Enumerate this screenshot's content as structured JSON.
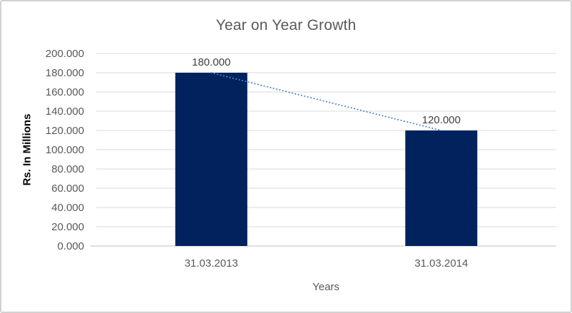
{
  "chart_data": {
    "type": "bar",
    "title": "Year on Year Growth",
    "xlabel": "Years",
    "ylabel": "Rs. In Millions",
    "categories": [
      "31.03.2013",
      "31.03.2014"
    ],
    "values": [
      180,
      120
    ],
    "data_labels": [
      "180.000",
      "120.000"
    ],
    "ylim": [
      0,
      200
    ],
    "ytick_step": 20,
    "ytick_labels": [
      "0.000",
      "20.000",
      "40.000",
      "60.000",
      "80.000",
      "100.000",
      "120.000",
      "140.000",
      "160.000",
      "180.000",
      "200.000"
    ],
    "grid": true,
    "legend": "none",
    "trendline": {
      "type": "linear-dotted",
      "connects": [
        180,
        120
      ],
      "color": "#4a86c8"
    },
    "colors": {
      "bar": "#02225e",
      "gridline": "#d9d9d9",
      "axis_line": "#bfbfbf",
      "tick_label": "#595959",
      "title": "#595959",
      "data_label": "#404040",
      "axis_title_y": "#000000",
      "axis_title_x": "#595959",
      "frame_border": "#d2d2d2",
      "background": "#ffffff"
    }
  }
}
